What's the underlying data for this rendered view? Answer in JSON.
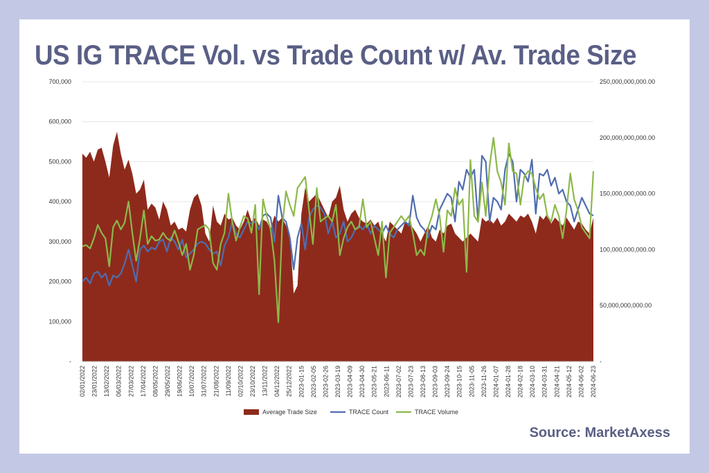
{
  "title": "US IG TRACE Vol. vs Trade Count  w/ Av. Trade Size",
  "source": "Source: MarketAxess",
  "chart_data": {
    "type": "area+line",
    "title": "US IG TRACE Vol. vs Trade Count  w/ Av. Trade Size",
    "x_tick_labels": [
      "02/01/2022",
      "23/01/2022",
      "13/02/2022",
      "06/03/2022",
      "27/03/2022",
      "17/04/2022",
      "08/05/2022",
      "29/05/2022",
      "19/06/2022",
      "10/07/2022",
      "31/07/2022",
      "21/08/2022",
      "11/09/2022",
      "02/10/2022",
      "23/10/2022",
      "13/11/2022",
      "04/12/2022",
      "25/12/2022",
      "2023-01-15",
      "2023-02-05",
      "2023-02-26",
      "2023-03-19",
      "2023-04-09",
      "2023-04-30",
      "2023-05-21",
      "2023-06-11",
      "2023-07-02",
      "2023-07-23",
      "2023-08-13",
      "2023-09-03",
      "2023-09-24",
      "2023-10-15",
      "2023-11-05",
      "2023-11-26",
      "2024-01-07",
      "2024-01-28",
      "2024-02-18",
      "2024-03-10",
      "2024-03-31",
      "2024-04-21",
      "2024-05-12",
      "2024-06-02",
      "2024-06-23"
    ],
    "left_axis": {
      "ylim": [
        0,
        700000
      ],
      "ticks": [
        0,
        100000,
        200000,
        300000,
        400000,
        500000,
        600000,
        700000
      ],
      "tick_labels": [
        "-",
        "100,000",
        "200,000",
        "300,000",
        "400,000",
        "500,000",
        "600,000",
        "700,000"
      ]
    },
    "right_axis": {
      "ylim": [
        0,
        250000000000
      ],
      "ticks": [
        0,
        50000000000,
        100000000000,
        150000000000,
        200000000000,
        250000000000
      ],
      "tick_labels": [
        "-",
        "50,000,000,000.00",
        "100,000,000,000.00",
        "150,000,000,000.00",
        "200,000,000,000.00",
        "250,000,000,000.00"
      ]
    },
    "legend_position": "bottom",
    "series": [
      {
        "name": "Average Trade Size",
        "kind": "area",
        "axis": "left",
        "color": "#8e2a1c",
        "values": [
          520000,
          510000,
          525000,
          500000,
          530000,
          535000,
          500000,
          460000,
          540000,
          575000,
          520000,
          480000,
          505000,
          470000,
          420000,
          430000,
          455000,
          380000,
          395000,
          385000,
          355000,
          400000,
          380000,
          340000,
          350000,
          330000,
          335000,
          325000,
          380000,
          410000,
          420000,
          390000,
          320000,
          300000,
          390000,
          350000,
          340000,
          370000,
          355000,
          360000,
          340000,
          330000,
          350000,
          380000,
          350000,
          360000,
          340000,
          355000,
          350000,
          330000,
          365000,
          350000,
          360000,
          340000,
          320000,
          170000,
          190000,
          370000,
          435000,
          400000,
          410000,
          420000,
          400000,
          380000,
          360000,
          400000,
          410000,
          440000,
          380000,
          350000,
          370000,
          380000,
          360000,
          350000,
          345000,
          355000,
          340000,
          350000,
          320000,
          300000,
          350000,
          340000,
          330000,
          320000,
          350000,
          345000,
          335000,
          320000,
          300000,
          320000,
          340000,
          310000,
          300000,
          330000,
          320000,
          340000,
          345000,
          320000,
          310000,
          300000,
          310000,
          320000,
          310000,
          300000,
          360000,
          350000,
          355000,
          345000,
          360000,
          340000,
          350000,
          370000,
          360000,
          350000,
          365000,
          360000,
          370000,
          350000,
          320000,
          365000,
          355000,
          370000,
          345000,
          360000,
          350000,
          340000,
          360000,
          345000,
          330000,
          350000,
          345000,
          330000,
          320000,
          360000
        ]
      },
      {
        "name": "TRACE Count",
        "kind": "line",
        "axis": "left",
        "color": "#4f6db0",
        "values": [
          200000,
          210000,
          195000,
          220000,
          225000,
          210000,
          220000,
          190000,
          215000,
          210000,
          220000,
          245000,
          280000,
          240000,
          200000,
          280000,
          290000,
          275000,
          285000,
          280000,
          300000,
          305000,
          275000,
          310000,
          300000,
          280000,
          305000,
          260000,
          270000,
          280000,
          295000,
          300000,
          295000,
          280000,
          270000,
          275000,
          240000,
          290000,
          310000,
          350000,
          320000,
          310000,
          330000,
          350000,
          345000,
          350000,
          330000,
          365000,
          370000,
          360000,
          300000,
          415000,
          360000,
          350000,
          310000,
          230000,
          310000,
          345000,
          280000,
          360000,
          380000,
          390000,
          385000,
          370000,
          320000,
          350000,
          310000,
          320000,
          350000,
          300000,
          310000,
          330000,
          340000,
          330000,
          345000,
          320000,
          340000,
          330000,
          320000,
          340000,
          320000,
          310000,
          330000,
          340000,
          350000,
          340000,
          415000,
          360000,
          340000,
          330000,
          310000,
          340000,
          330000,
          380000,
          400000,
          420000,
          410000,
          350000,
          450000,
          430000,
          480000,
          460000,
          480000,
          350000,
          515000,
          500000,
          350000,
          410000,
          400000,
          380000,
          480000,
          520000,
          500000,
          400000,
          480000,
          470000,
          450000,
          505000,
          370000,
          470000,
          465000,
          480000,
          440000,
          460000,
          420000,
          430000,
          400000,
          390000,
          350000,
          380000,
          410000,
          390000,
          370000,
          365000
        ]
      },
      {
        "name": "TRACE Volume",
        "kind": "line",
        "axis": "right",
        "color": "#8db84a",
        "values": [
          103000000000,
          104000000000,
          101000000000,
          110000000000,
          122000000000,
          115000000000,
          110000000000,
          85000000000,
          120000000000,
          126000000000,
          118000000000,
          124000000000,
          143000000000,
          115000000000,
          90000000000,
          110000000000,
          135000000000,
          105000000000,
          112000000000,
          108000000000,
          109000000000,
          115000000000,
          110000000000,
          108000000000,
          117000000000,
          107000000000,
          95000000000,
          105000000000,
          82000000000,
          95000000000,
          118000000000,
          120000000000,
          122000000000,
          118000000000,
          88000000000,
          82000000000,
          105000000000,
          115000000000,
          150000000000,
          125000000000,
          108000000000,
          120000000000,
          130000000000,
          128000000000,
          115000000000,
          140000000000,
          60000000000,
          145000000000,
          130000000000,
          118000000000,
          90000000000,
          35000000000,
          120000000000,
          152000000000,
          140000000000,
          130000000000,
          155000000000,
          160000000000,
          165000000000,
          135000000000,
          105000000000,
          155000000000,
          125000000000,
          128000000000,
          130000000000,
          125000000000,
          140000000000,
          95000000000,
          110000000000,
          120000000000,
          125000000000,
          118000000000,
          120000000000,
          145000000000,
          120000000000,
          125000000000,
          110000000000,
          95000000000,
          125000000000,
          75000000000,
          115000000000,
          120000000000,
          125000000000,
          130000000000,
          125000000000,
          130000000000,
          115000000000,
          95000000000,
          100000000000,
          95000000000,
          120000000000,
          130000000000,
          145000000000,
          130000000000,
          98000000000,
          135000000000,
          130000000000,
          155000000000,
          140000000000,
          145000000000,
          80000000000,
          180000000000,
          130000000000,
          125000000000,
          160000000000,
          130000000000,
          175000000000,
          200000000000,
          170000000000,
          160000000000,
          140000000000,
          195000000000,
          170000000000,
          168000000000,
          140000000000,
          165000000000,
          170000000000,
          168000000000,
          155000000000,
          145000000000,
          150000000000,
          130000000000,
          125000000000,
          140000000000,
          130000000000,
          110000000000,
          135000000000,
          168000000000,
          145000000000,
          135000000000,
          120000000000,
          115000000000,
          110000000000,
          170000000000
        ]
      }
    ]
  }
}
